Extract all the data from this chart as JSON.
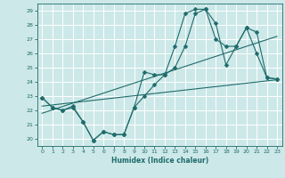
{
  "title": "",
  "xlabel": "Humidex (Indice chaleur)",
  "xlim": [
    -0.5,
    23.5
  ],
  "ylim": [
    19.5,
    29.5
  ],
  "xticks": [
    0,
    1,
    2,
    3,
    4,
    5,
    6,
    7,
    8,
    9,
    10,
    11,
    12,
    13,
    14,
    15,
    16,
    17,
    18,
    19,
    20,
    21,
    22,
    23
  ],
  "yticks": [
    20,
    21,
    22,
    23,
    24,
    25,
    26,
    27,
    28,
    29
  ],
  "bg_color": "#cde8e8",
  "line_color": "#1e6b6b",
  "grid_color": "#ffffff",
  "series": [
    {
      "x": [
        0,
        1,
        2,
        3,
        4,
        5,
        6,
        7,
        8,
        9,
        10,
        11,
        12,
        13,
        14,
        15,
        16,
        17,
        18,
        19,
        20,
        21,
        22,
        23
      ],
      "y": [
        22.9,
        22.2,
        22.0,
        22.2,
        21.2,
        19.9,
        20.5,
        20.3,
        20.3,
        22.2,
        24.7,
        24.5,
        24.5,
        26.5,
        28.8,
        29.1,
        29.1,
        28.1,
        25.2,
        26.5,
        27.8,
        27.5,
        24.3,
        24.2
      ],
      "marker": "D",
      "markersize": 2.5
    },
    {
      "x": [
        0,
        1,
        2,
        3,
        4,
        5,
        6,
        7,
        8,
        9,
        10,
        11,
        12,
        13,
        14,
        15,
        16,
        17,
        18,
        19,
        20,
        21,
        22,
        23
      ],
      "y": [
        22.9,
        22.2,
        22.0,
        22.3,
        21.2,
        19.9,
        20.5,
        20.3,
        20.3,
        22.2,
        23.0,
        23.8,
        24.5,
        25.0,
        26.5,
        28.8,
        29.1,
        27.0,
        26.5,
        26.5,
        27.8,
        26.0,
        24.3,
        24.2
      ],
      "marker": "D",
      "markersize": 2.5
    },
    {
      "x": [
        0,
        23
      ],
      "y": [
        22.3,
        24.15
      ],
      "marker": null,
      "markersize": 0
    },
    {
      "x": [
        0,
        23
      ],
      "y": [
        21.8,
        27.2
      ],
      "marker": null,
      "markersize": 0
    }
  ]
}
